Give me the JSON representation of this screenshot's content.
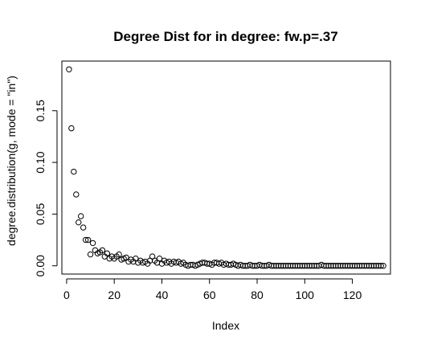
{
  "chart_data": {
    "type": "scatter",
    "title": "Degree Dist for in degree: fw.p=.37",
    "xlabel": "Index",
    "ylabel": "degree.distribution(g, mode = \"in\")",
    "xlim": [
      -2,
      136
    ],
    "ylim": [
      -0.008,
      0.198
    ],
    "xticks": [
      0,
      20,
      40,
      60,
      80,
      100,
      120
    ],
    "xtick_labels": [
      "0",
      "20",
      "40",
      "60",
      "80",
      "100",
      "120"
    ],
    "yticks": [
      0.0,
      0.05,
      0.1,
      0.15
    ],
    "ytick_labels": [
      "0.00",
      "0.05",
      "0.10",
      "0.15"
    ],
    "grid": false,
    "legend": false,
    "marker": "open-circle",
    "series": [
      {
        "x": [
          1,
          2,
          3,
          4,
          5,
          6,
          7,
          8,
          9,
          10,
          11,
          12,
          13,
          14,
          15,
          16,
          17,
          18,
          19,
          20,
          21,
          22,
          23,
          24,
          25,
          26,
          27,
          28,
          29,
          30,
          31,
          32,
          33,
          34,
          35,
          36,
          37,
          38,
          39,
          40,
          41,
          42,
          43,
          44,
          45,
          46,
          47,
          48,
          49,
          50,
          51,
          52,
          53,
          54,
          55,
          56,
          57,
          58,
          59,
          60,
          61,
          62,
          63,
          64,
          65,
          66,
          67,
          68,
          69,
          70,
          71,
          72,
          73,
          74,
          75,
          76,
          77,
          78,
          79,
          80,
          81,
          82,
          83,
          84,
          85,
          86,
          87,
          88,
          89,
          90,
          91,
          92,
          93,
          94,
          95,
          96,
          97,
          98,
          99,
          100,
          101,
          102,
          103,
          104,
          105,
          106,
          107,
          108,
          109,
          110,
          111,
          112,
          113,
          114,
          115,
          116,
          117,
          118,
          119,
          120,
          121,
          122,
          123,
          124,
          125,
          126,
          127,
          128,
          129,
          130,
          131,
          132,
          133
        ],
        "values": [
          0.19,
          0.133,
          0.091,
          0.069,
          0.042,
          0.048,
          0.037,
          0.025,
          0.025,
          0.011,
          0.022,
          0.015,
          0.012,
          0.013,
          0.015,
          0.009,
          0.012,
          0.007,
          0.009,
          0.007,
          0.009,
          0.011,
          0.006,
          0.007,
          0.008,
          0.004,
          0.006,
          0.004,
          0.007,
          0.003,
          0.005,
          0.003,
          0.004,
          0.002,
          0.005,
          0.009,
          0.005,
          0.003,
          0.007,
          0.002,
          0.005,
          0.003,
          0.004,
          0.002,
          0.004,
          0.003,
          0.004,
          0.002,
          0.003,
          0.001,
          0.0,
          0.001,
          0.001,
          0.0,
          0.001,
          0.002,
          0.003,
          0.003,
          0.002,
          0.002,
          0.001,
          0.003,
          0.003,
          0.002,
          0.003,
          0.001,
          0.002,
          0.001,
          0.001,
          0.002,
          0.001,
          0.0,
          0.001,
          0.0,
          0.0,
          0.0,
          0.001,
          0.0,
          0.0,
          0.0,
          0.001,
          0.0,
          0.0,
          0.0,
          0.001,
          0.0,
          0.0,
          0.0,
          0.0,
          0.0,
          0.0,
          0.0,
          0.0,
          0.0,
          0.0,
          0.0,
          0.0,
          0.0,
          0.0,
          0.0,
          0.0,
          0.0,
          0.0,
          0.0,
          0.0,
          0.0,
          0.001,
          0.0,
          0.0,
          0.0,
          0.0,
          0.0,
          0.0,
          0.0,
          0.0,
          0.0,
          0.0,
          0.0,
          0.0,
          0.0,
          0.0,
          0.0,
          0.0,
          0.0,
          0.0,
          0.0,
          0.0,
          0.0,
          0.0,
          0.0,
          0.0,
          0.0,
          0.0
        ]
      }
    ]
  }
}
